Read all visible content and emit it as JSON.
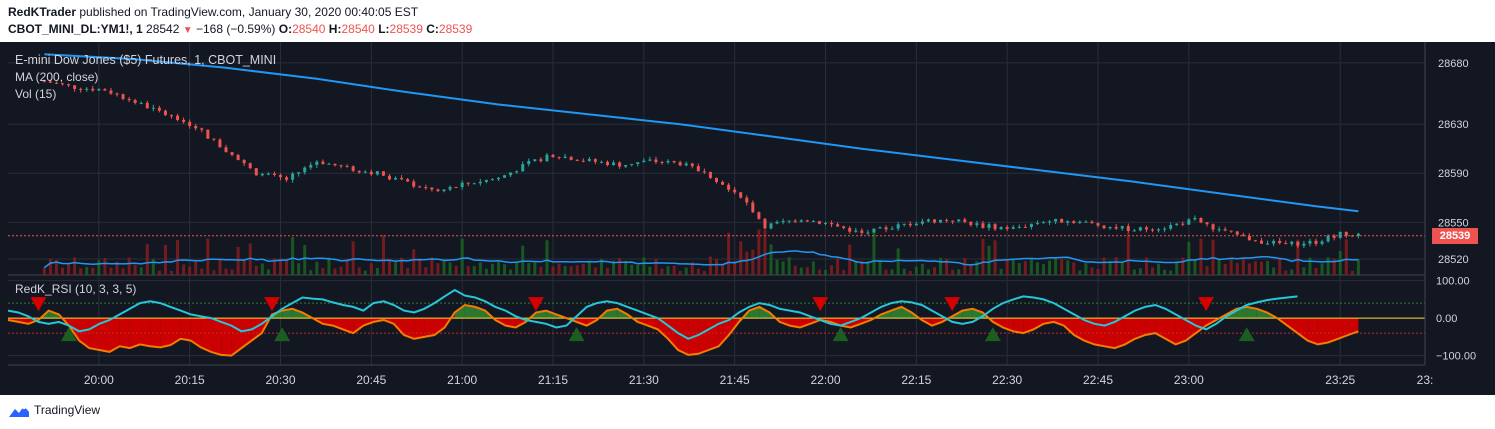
{
  "header": {
    "author": "RedKTrader",
    "published": "published on TradingView.com, January 30, 2020 00:40:05 EST",
    "symbol": "CBOT_MINI_DL:YM1!, 1",
    "last": "28542",
    "change": "−168 (−0.59%)",
    "o_label": "O:",
    "o_value": "28540",
    "h_label": "H:",
    "h_value": "28540",
    "l_label": "L:",
    "l_value": "28539",
    "c_label": "C:",
    "c_value": "28539"
  },
  "legend": {
    "title": "E-mini Dow Jones ($5) Futures, 1, CBOT_MINI",
    "ma": "MA (200, close)",
    "vol": "Vol (15)",
    "rsi": "RedK_RSI (10, 3, 3, 5)"
  },
  "price_tag": "28539",
  "footer": {
    "brand": "TradingView"
  },
  "colors": {
    "background": "#131722",
    "up": "#26a69a",
    "down": "#ef5350",
    "ma": "#2196f3",
    "rsi_fast": "#26c6da",
    "rsi_slow": "#f57c00",
    "fill_pos": "#2e7d32",
    "fill_neg": "#d50000",
    "marker_down": "#d50000",
    "marker_up": "#1b5e20"
  },
  "chart_data": [
    {
      "type": "candlestick",
      "title": "E-mini Dow Jones ($5) Futures, 1, CBOT_MINI",
      "x_ticks": [
        "20:00",
        "20:15",
        "20:30",
        "20:45",
        "21:00",
        "21:15",
        "21:30",
        "21:45",
        "22:00",
        "22:15",
        "22:30",
        "22:45",
        "23:00",
        "23:25",
        "23:"
      ],
      "y_ticks": [
        28520,
        28550,
        28590,
        28630,
        28680
      ],
      "ylim": [
        28507,
        28697
      ],
      "grid": true,
      "close_path": {
        "x": [
          "19:51",
          "19:56",
          "20:01",
          "20:06",
          "20:11",
          "20:16",
          "20:21",
          "20:26",
          "20:31",
          "20:36",
          "20:41",
          "20:46",
          "20:51",
          "20:56",
          "21:01",
          "21:06",
          "21:11",
          "21:15",
          "21:21",
          "21:26",
          "21:31",
          "21:36",
          "21:41",
          "21:46",
          "21:50",
          "21:56",
          "22:01",
          "22:06",
          "22:11",
          "22:16",
          "22:21",
          "22:26",
          "22:31",
          "22:36",
          "22:41",
          "22:46",
          "22:51",
          "22:56",
          "23:01",
          "23:06",
          "23:11",
          "23:16",
          "23:21",
          "23:25",
          "23:28"
        ],
        "y": [
          28665,
          28660,
          28658,
          28648,
          28638,
          28628,
          28608,
          28590,
          28585,
          28600,
          28594,
          28590,
          28582,
          28575,
          28582,
          28586,
          28598,
          28605,
          28600,
          28597,
          28600,
          28598,
          28588,
          28572,
          28547,
          28553,
          28548,
          28541,
          28546,
          28551,
          28552,
          28547,
          28545,
          28551,
          28551,
          28547,
          28544,
          28546,
          28552,
          28542,
          28535,
          28532,
          28534,
          28541,
          28540
        ]
      },
      "ma_200": {
        "x": [
          "19:51",
          "20:06",
          "20:21",
          "20:36",
          "20:51",
          "21:06",
          "21:21",
          "21:36",
          "21:51",
          "22:06",
          "22:21",
          "22:36",
          "22:51",
          "23:06",
          "23:21",
          "23:28"
        ],
        "y": [
          28687,
          28683,
          28676,
          28667,
          28656,
          28646,
          28638,
          28630,
          28620,
          28610,
          28601,
          28592,
          28583,
          28573,
          28563,
          28559
        ]
      },
      "last_price": 28539
    },
    {
      "type": "bar",
      "title": "Vol (15)",
      "note": "Volume histogram with moving average; no values printed on chart"
    },
    {
      "type": "line",
      "title": "RedK_RSI (10, 3, 3, 5)",
      "y_ticks": [
        100.0,
        0.0,
        -100.0
      ],
      "ylim": [
        -125,
        115
      ],
      "levels": [
        40,
        0,
        -40
      ],
      "series": [
        {
          "values": [
            -5,
            -10,
            -15,
            -5,
            20,
            10,
            -20,
            -60,
            -80,
            -85,
            -90,
            -75,
            -80,
            -70,
            -75,
            -78,
            -72,
            -55,
            -60,
            -78,
            -90,
            -98,
            -100,
            -80,
            -60,
            -40,
            10,
            20,
            25,
            15,
            0,
            -15,
            -20,
            -30,
            -40,
            -20,
            -10,
            -5,
            -15,
            -45,
            -55,
            -50,
            -45,
            -25,
            15,
            35,
            30,
            20,
            -5,
            -20,
            -25,
            -10,
            15,
            20,
            10,
            0,
            -10,
            -20,
            -5,
            20,
            25,
            10,
            -10,
            -20,
            -30,
            -55,
            -85,
            -98,
            -95,
            -85,
            -75,
            -45,
            -10,
            20,
            30,
            15,
            -10,
            -20,
            -25,
            -15,
            -5,
            -10,
            -20,
            -25,
            -15,
            -5,
            10,
            20,
            30,
            15,
            -5,
            -20,
            -10,
            5,
            20,
            25,
            15,
            -10,
            -25,
            -35,
            -40,
            -30,
            -15,
            -10,
            -20,
            -45,
            -60,
            -70,
            -75,
            -80,
            -70,
            -55,
            -45,
            -40,
            -55,
            -70,
            -60,
            -40,
            -20,
            -5,
            10,
            25,
            30,
            25,
            15,
            0,
            -20,
            -40,
            -60,
            -70,
            -65,
            -55,
            -45,
            -35
          ]
        },
        {
          "values": [
            20,
            15,
            5,
            -10,
            -15,
            -10,
            -20,
            -35,
            -30,
            -15,
            -5,
            10,
            25,
            40,
            45,
            40,
            30,
            20,
            10,
            5,
            0,
            -10,
            -20,
            -35,
            -30,
            -15,
            5,
            25,
            40,
            55,
            52,
            50,
            42,
            35,
            30,
            20,
            40,
            45,
            35,
            20,
            15,
            25,
            40,
            58,
            75,
            60,
            55,
            45,
            30,
            20,
            5,
            -5,
            -10,
            -15,
            -25,
            -20,
            5,
            30,
            40,
            45,
            40,
            30,
            20,
            10,
            0,
            -20,
            -40,
            -55,
            -45,
            -30,
            -15,
            -5,
            15,
            30,
            40,
            35,
            25,
            20,
            15,
            5,
            -5,
            -15,
            -20,
            -10,
            0,
            15,
            30,
            40,
            45,
            42,
            35,
            20,
            5,
            -10,
            -15,
            -10,
            5,
            25,
            40,
            50,
            58,
            55,
            50,
            40,
            25,
            10,
            -5,
            -15,
            -20,
            -10,
            5,
            20,
            30,
            35,
            25,
            10,
            -5,
            -20,
            -30,
            -15,
            5,
            20,
            35,
            42,
            48,
            52,
            55,
            58
          ]
        }
      ]
    }
  ]
}
